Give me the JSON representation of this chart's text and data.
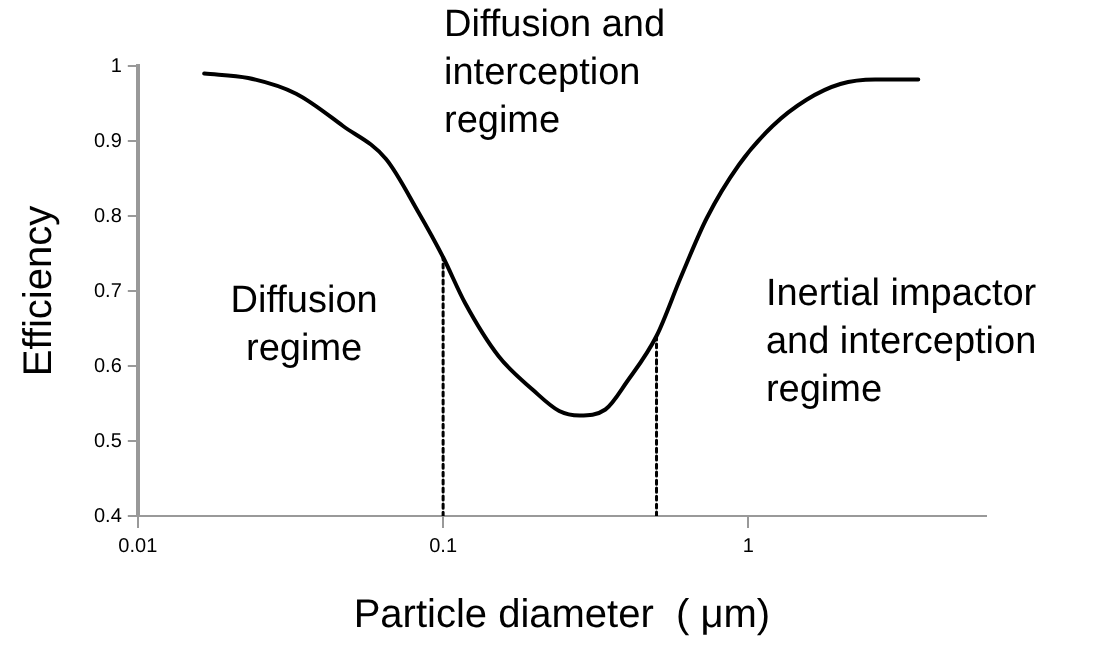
{
  "chart_data": {
    "type": "line",
    "xlabel": "Particle diameter  ( μm)",
    "ylabel": "Efficiency",
    "annotations": [
      "Diffusion and interception regime",
      "Diffusion regime",
      "Inertial impactor and interception regime"
    ],
    "log": "x",
    "xlim": [
      0.01,
      6
    ],
    "xticks": [
      0.01,
      0.1,
      1
    ],
    "ylim": [
      0.4,
      1
    ],
    "yticks": [
      0.4,
      0.5,
      0.6,
      0.7,
      0.8,
      0.9,
      1
    ],
    "grid": false,
    "legend": false,
    "marker": "none",
    "series": [
      {
        "color": "#000000",
        "line_style": "solid",
        "x": [
          0.0165,
          0.023,
          0.033,
          0.047,
          0.065,
          0.083,
          0.1,
          0.118,
          0.152,
          0.197,
          0.24,
          0.28,
          0.34,
          0.4,
          0.5,
          0.6,
          0.73,
          0.93,
          1.2,
          1.55,
          2.0,
          2.6,
          3.6
        ],
        "values": [
          0.99,
          0.984,
          0.963,
          0.92,
          0.876,
          0.805,
          0.745,
          0.684,
          0.613,
          0.568,
          0.54,
          0.534,
          0.542,
          0.579,
          0.64,
          0.718,
          0.797,
          0.868,
          0.92,
          0.955,
          0.976,
          0.982,
          0.982
        ]
      },
      {
        "color": "#000000",
        "line_style": "dotted",
        "x": [
          0.1,
          0.1
        ],
        "values": [
          0.4,
          0.745
        ]
      },
      {
        "color": "#000000",
        "line_style": "dotted",
        "x": [
          0.5,
          0.5
        ],
        "values": [
          0.4,
          0.64
        ]
      }
    ]
  }
}
